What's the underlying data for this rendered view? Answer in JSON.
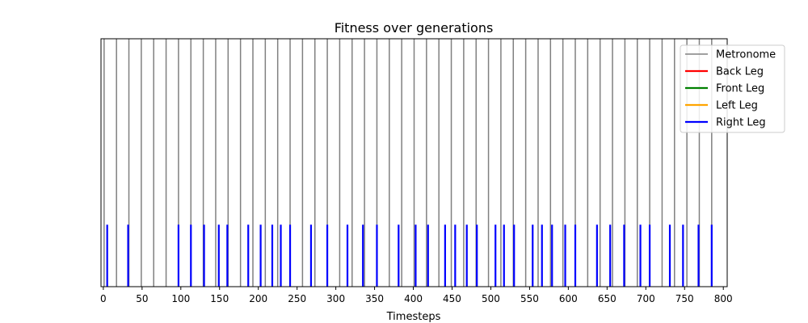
{
  "chart_data": {
    "type": "event-lines",
    "title": "Fitness over generations",
    "xlabel": "Timesteps",
    "ylabel": "",
    "xlim": [
      -3,
      805
    ],
    "xticks": [
      0,
      50,
      100,
      150,
      200,
      250,
      300,
      350,
      400,
      450,
      500,
      550,
      600,
      650,
      700,
      750,
      800
    ],
    "x_tick_labels": [
      "0",
      "50",
      "100",
      "150",
      "200",
      "250",
      "300",
      "350",
      "400",
      "450",
      "500",
      "550",
      "600",
      "650",
      "700",
      "750",
      "800"
    ],
    "grid": false,
    "legend_position": "top-right",
    "series": [
      {
        "name": "Metronome",
        "color": "#808080",
        "level": 1.0,
        "x": [
          1,
          17,
          33,
          49,
          65,
          81,
          97,
          113,
          129,
          145,
          161,
          177,
          193,
          209,
          225,
          241,
          257,
          273,
          289,
          305,
          321,
          337,
          353,
          369,
          385,
          401,
          417,
          433,
          449,
          465,
          481,
          497,
          513,
          529,
          545,
          561,
          577,
          593,
          609,
          625,
          641,
          657,
          673,
          689,
          705,
          721,
          737,
          753,
          769,
          785
        ]
      },
      {
        "name": "Back Leg",
        "color": "#ff0000",
        "level": 0.25,
        "x": []
      },
      {
        "name": "Front Leg",
        "color": "#008000",
        "level": 0.25,
        "x": []
      },
      {
        "name": "Left Leg",
        "color": "#ffa500",
        "level": 0.25,
        "x": []
      },
      {
        "name": "Right Leg",
        "color": "#0000ff",
        "level": 0.25,
        "x": [
          5,
          32,
          97,
          113,
          130,
          149,
          160,
          187,
          203,
          218,
          229,
          241,
          268,
          289,
          315,
          335,
          353,
          381,
          403,
          419,
          441,
          454,
          469,
          482,
          506,
          517,
          530,
          554,
          566,
          579,
          596,
          609,
          637,
          654,
          672,
          693,
          705,
          731,
          748,
          768,
          785
        ]
      }
    ]
  }
}
